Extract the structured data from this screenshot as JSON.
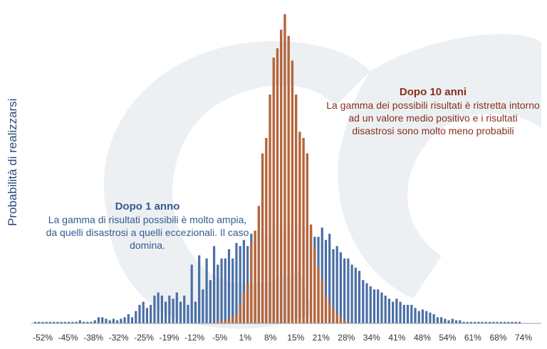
{
  "chart_data": {
    "type": "bar",
    "ylabel": "Probabilità di realizzarsi",
    "ylim": [
      0,
      1.0
    ],
    "tick_labels": [
      "-52%",
      "-45%",
      "-38%",
      "-32%",
      "-25%",
      "-19%",
      "-12%",
      "-5%",
      "1%",
      "8%",
      "15%",
      "21%",
      "28%",
      "34%",
      "41%",
      "48%",
      "54%",
      "61%",
      "68%",
      "74%"
    ],
    "x_range_percent": [
      -52,
      76
    ],
    "series": [
      {
        "name": "Dopo 1 anno",
        "color": "#4a6fa5",
        "x": [
          -54,
          -53,
          -52,
          -51,
          -50,
          -49,
          -48,
          -47,
          -46,
          -45,
          -44,
          -43,
          -42,
          -41,
          -40,
          -39,
          -38,
          -37,
          -36,
          -35,
          -34,
          -33,
          -32,
          -31,
          -30,
          -29,
          -28,
          -27,
          -26,
          -25,
          -24,
          -23,
          -22,
          -21,
          -20,
          -19,
          -18,
          -17,
          -16,
          -15,
          -14,
          -13,
          -12,
          -11,
          -10,
          -9,
          -8,
          -7,
          -6,
          -5,
          -4,
          -3,
          -2,
          -1,
          0,
          1,
          2,
          3,
          4,
          5,
          6,
          7,
          8,
          9,
          10,
          11,
          12,
          13,
          14,
          15,
          16,
          17,
          18,
          19,
          20,
          21,
          22,
          23,
          24,
          25,
          26,
          27,
          28,
          29,
          30,
          31,
          32,
          33,
          34,
          35,
          36,
          37,
          38,
          39,
          40,
          41,
          42,
          43,
          44,
          45,
          46,
          47,
          48,
          49,
          50,
          51,
          52,
          53,
          54,
          55,
          56,
          57,
          58,
          59,
          60,
          61,
          62,
          63,
          64,
          65,
          66,
          67,
          68,
          69,
          70,
          71,
          72,
          73,
          74,
          75,
          76
        ],
        "values": [
          0.005,
          0.005,
          0.005,
          0.005,
          0.005,
          0.005,
          0.005,
          0.005,
          0.005,
          0.005,
          0.005,
          0.005,
          0.01,
          0.005,
          0.005,
          0.005,
          0.01,
          0.02,
          0.02,
          0.015,
          0.01,
          0.015,
          0.01,
          0.015,
          0.02,
          0.03,
          0.02,
          0.04,
          0.06,
          0.07,
          0.05,
          0.06,
          0.09,
          0.1,
          0.09,
          0.07,
          0.09,
          0.08,
          0.1,
          0.07,
          0.09,
          0.06,
          0.19,
          0.07,
          0.22,
          0.11,
          0.21,
          0.14,
          0.25,
          0.19,
          0.21,
          0.21,
          0.24,
          0.21,
          0.26,
          0.25,
          0.27,
          0.25,
          0.29,
          0.26,
          0.3,
          0.27,
          0.3,
          0.28,
          0.31,
          0.32,
          0.3,
          0.3,
          0.33,
          0.31,
          0.33,
          0.3,
          0.31,
          0.28,
          0.31,
          0.28,
          0.28,
          0.31,
          0.27,
          0.29,
          0.24,
          0.25,
          0.23,
          0.21,
          0.21,
          0.19,
          0.18,
          0.17,
          0.14,
          0.13,
          0.12,
          0.11,
          0.11,
          0.1,
          0.09,
          0.08,
          0.07,
          0.08,
          0.07,
          0.06,
          0.06,
          0.06,
          0.05,
          0.04,
          0.045,
          0.04,
          0.035,
          0.03,
          0.02,
          0.02,
          0.015,
          0.01,
          0.015,
          0.01,
          0.01,
          0.005,
          0.005,
          0.005,
          0.005,
          0.005,
          0.005,
          0.005,
          0.005,
          0.005,
          0.005,
          0.005,
          0.005,
          0.005,
          0.005,
          0.005,
          0.005
        ]
      },
      {
        "name": "Dopo 10 anni",
        "color": "#b5653c",
        "x": [
          -5,
          -4,
          -3,
          -2,
          -1,
          0,
          1,
          2,
          3,
          4,
          5,
          6,
          7,
          8,
          9,
          10,
          11,
          12,
          13,
          14,
          15,
          16,
          17,
          18,
          19,
          20,
          21,
          22,
          23,
          24,
          25,
          26,
          27,
          28,
          29,
          30
        ],
        "values": [
          0.005,
          0.01,
          0.01,
          0.015,
          0.02,
          0.03,
          0.06,
          0.1,
          0.13,
          0.26,
          0.3,
          0.38,
          0.55,
          0.6,
          0.74,
          0.86,
          0.89,
          0.95,
          1.0,
          0.93,
          0.85,
          0.74,
          0.62,
          0.6,
          0.55,
          0.32,
          0.24,
          0.18,
          0.14,
          0.09,
          0.07,
          0.05,
          0.03,
          0.02,
          0.01,
          0.005
        ]
      }
    ],
    "annotations": [
      {
        "title": "Dopo 1 anno",
        "text": "La gamma di risultati possibili è molto ampia, da quelli disastrosi a quelli eccezionali. Il caso domina."
      },
      {
        "title": "Dopo 10 anni",
        "text": "La gamma dei possibili risultati è ristretta intorno ad un valore medio positivo e i risultati disastrosi sono molto meno probabili"
      }
    ],
    "grid": false,
    "legend": "none"
  },
  "colors": {
    "watermark": "#dde3ea",
    "axis": "#9aa0a6",
    "tick_text": "#333333"
  }
}
